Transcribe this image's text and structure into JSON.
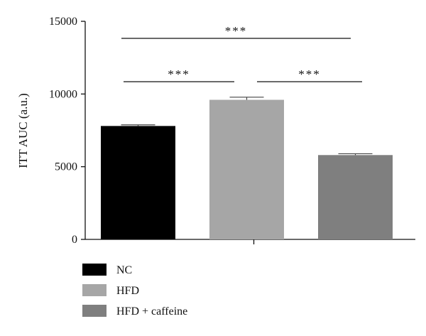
{
  "chart_data": {
    "type": "bar",
    "title": "",
    "xlabel": "",
    "ylabel": "ITT AUC (a.u.)",
    "ylim": [
      0,
      15000
    ],
    "yticks": [
      0,
      5000,
      10000,
      15000
    ],
    "categories": [
      "NC",
      "HFD",
      "HFD + caffeine"
    ],
    "values": [
      7800,
      9600,
      5800
    ],
    "errors": [
      80,
      180,
      90
    ],
    "colors": [
      "#000000",
      "#a6a6a6",
      "#7f7f7f"
    ],
    "grid": false,
    "legend_position": "bottom-left",
    "significance": [
      {
        "from": 0,
        "to": 2,
        "label": "***"
      },
      {
        "from": 0,
        "to": 1,
        "label": "***"
      },
      {
        "from": 1,
        "to": 2,
        "label": "***"
      }
    ]
  }
}
